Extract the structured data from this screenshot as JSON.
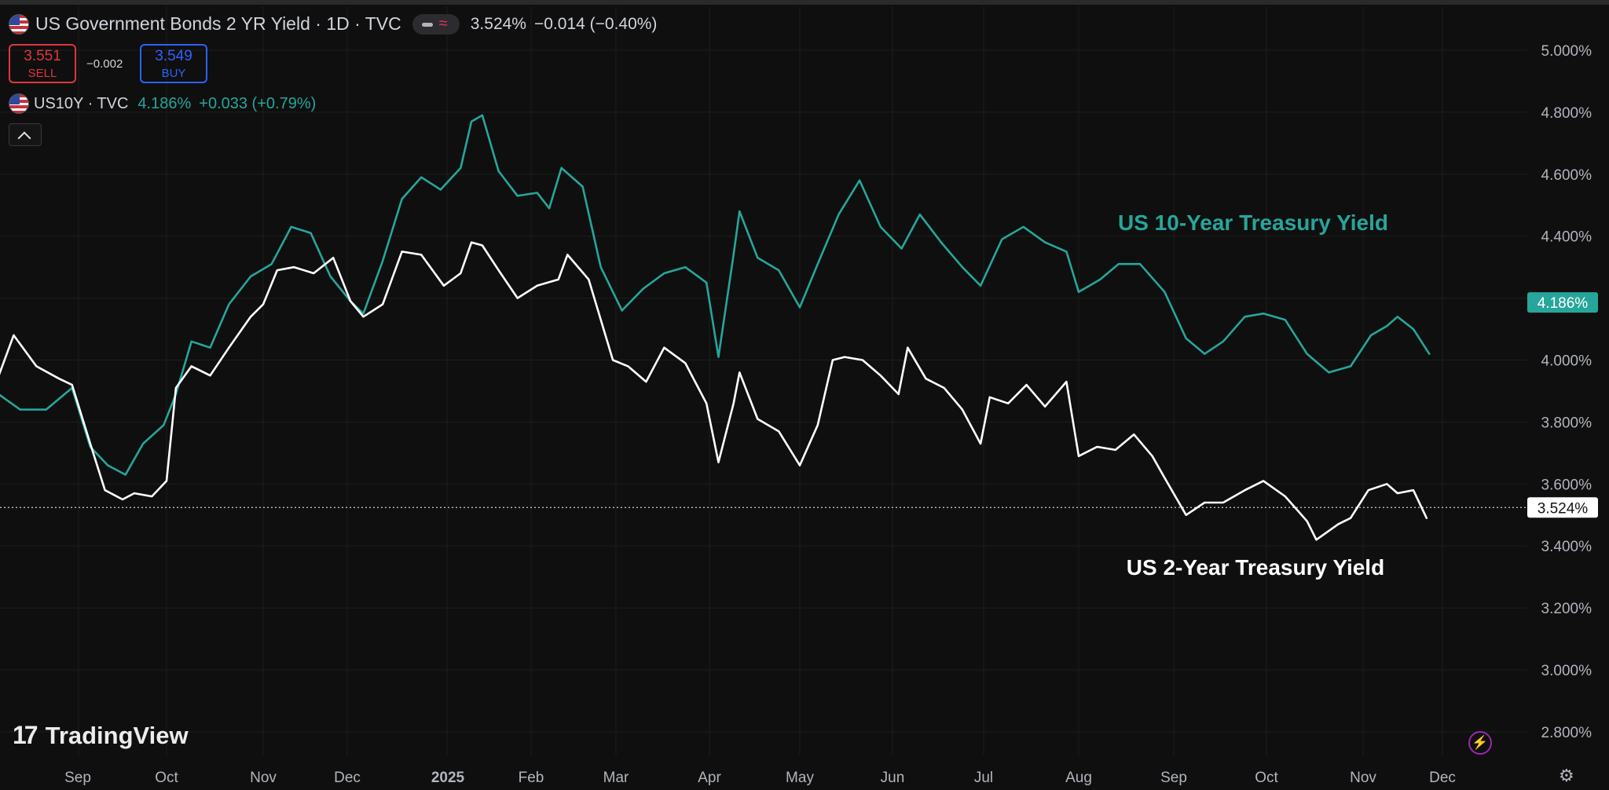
{
  "header": {
    "symbol_title": "US Government Bonds 2 YR Yield · 1D · TVC",
    "last": "3.524%",
    "change": "−0.014 (−0.40%)"
  },
  "trade": {
    "sell_price": "3.551",
    "sell_label": "SELL",
    "spread": "−0.002",
    "buy_price": "3.549",
    "buy_label": "BUY"
  },
  "compare": {
    "symbol": "US10Y · TVC",
    "value": "4.186%",
    "change": "+0.033 (+0.79%)"
  },
  "branding": {
    "name": "TradingView"
  },
  "colors": {
    "background": "#0f0f0f",
    "us10y_line": "#26a69a",
    "us2y_line": "#ffffff",
    "sell": "#e0353f",
    "buy": "#2d62ff"
  },
  "icons": [
    "us-flag-icon",
    "chart-style-icon",
    "collapse-chevron-icon",
    "tradingview-logo-icon",
    "lightning-icon",
    "gear-icon"
  ],
  "chart_data": {
    "type": "line",
    "x_axis_labels": [
      "Sep",
      "Oct",
      "Nov",
      "Dec",
      "2025",
      "Feb",
      "Mar",
      "Apr",
      "May",
      "Jun",
      "Jul",
      "Aug",
      "Sep",
      "Oct",
      "Nov",
      "Dec"
    ],
    "y_ticks": [
      "5.000%",
      "4.800%",
      "4.600%",
      "4.400%",
      "4.200%",
      "4.000%",
      "3.800%",
      "3.600%",
      "3.400%",
      "3.200%",
      "3.000%",
      "2.800%"
    ],
    "ylim": [
      2.76,
      5.04
    ],
    "grid": true,
    "annotations": [
      "US 10-Year Treasury Yield",
      "US 2-Year Treasury Yield"
    ],
    "last_value_labels": [
      "4.186%",
      "3.524%"
    ],
    "series": [
      {
        "name": "US10Y",
        "color": "#26a69a",
        "points": [
          [
            "2024-08-01",
            4.03
          ],
          [
            "2024-08-06",
            3.9
          ],
          [
            "2024-08-14",
            3.84
          ],
          [
            "2024-08-22",
            3.84
          ],
          [
            "2024-08-30",
            3.91
          ],
          [
            "2024-09-05",
            3.72
          ],
          [
            "2024-09-11",
            3.66
          ],
          [
            "2024-09-17",
            3.63
          ],
          [
            "2024-09-23",
            3.73
          ],
          [
            "2024-09-30",
            3.79
          ],
          [
            "2024-10-04",
            3.89
          ],
          [
            "2024-10-09",
            4.06
          ],
          [
            "2024-10-15",
            4.04
          ],
          [
            "2024-10-21",
            4.18
          ],
          [
            "2024-10-28",
            4.27
          ],
          [
            "2024-11-04",
            4.31
          ],
          [
            "2024-11-11",
            4.43
          ],
          [
            "2024-11-18",
            4.41
          ],
          [
            "2024-11-25",
            4.27
          ],
          [
            "2024-12-02",
            4.19
          ],
          [
            "2024-12-06",
            4.15
          ],
          [
            "2024-12-12",
            4.32
          ],
          [
            "2024-12-18",
            4.52
          ],
          [
            "2024-12-24",
            4.59
          ],
          [
            "2024-12-30",
            4.55
          ],
          [
            "2025-01-06",
            4.62
          ],
          [
            "2025-01-10",
            4.77
          ],
          [
            "2025-01-14",
            4.79
          ],
          [
            "2025-01-20",
            4.61
          ],
          [
            "2025-01-27",
            4.53
          ],
          [
            "2025-02-03",
            4.54
          ],
          [
            "2025-02-07",
            4.49
          ],
          [
            "2025-02-11",
            4.62
          ],
          [
            "2025-02-18",
            4.56
          ],
          [
            "2025-02-24",
            4.3
          ],
          [
            "2025-03-03",
            4.16
          ],
          [
            "2025-03-10",
            4.23
          ],
          [
            "2025-03-17",
            4.28
          ],
          [
            "2025-03-24",
            4.3
          ],
          [
            "2025-03-31",
            4.25
          ],
          [
            "2025-04-04",
            4.01
          ],
          [
            "2025-04-09",
            4.34
          ],
          [
            "2025-04-11",
            4.48
          ],
          [
            "2025-04-17",
            4.33
          ],
          [
            "2025-04-24",
            4.29
          ],
          [
            "2025-05-01",
            4.17
          ],
          [
            "2025-05-07",
            4.31
          ],
          [
            "2025-05-14",
            4.47
          ],
          [
            "2025-05-21",
            4.58
          ],
          [
            "2025-05-28",
            4.43
          ],
          [
            "2025-06-04",
            4.36
          ],
          [
            "2025-06-10",
            4.47
          ],
          [
            "2025-06-17",
            4.38
          ],
          [
            "2025-06-24",
            4.3
          ],
          [
            "2025-06-30",
            4.24
          ],
          [
            "2025-07-07",
            4.39
          ],
          [
            "2025-07-14",
            4.43
          ],
          [
            "2025-07-21",
            4.38
          ],
          [
            "2025-07-28",
            4.35
          ],
          [
            "2025-08-01",
            4.22
          ],
          [
            "2025-08-08",
            4.26
          ],
          [
            "2025-08-14",
            4.31
          ],
          [
            "2025-08-21",
            4.31
          ],
          [
            "2025-08-29",
            4.22
          ],
          [
            "2025-09-05",
            4.07
          ],
          [
            "2025-09-11",
            4.02
          ],
          [
            "2025-09-17",
            4.06
          ],
          [
            "2025-09-24",
            4.14
          ],
          [
            "2025-09-30",
            4.15
          ],
          [
            "2025-10-07",
            4.13
          ],
          [
            "2025-10-14",
            4.02
          ],
          [
            "2025-10-21",
            3.96
          ],
          [
            "2025-10-28",
            3.98
          ],
          [
            "2025-11-04",
            4.08
          ],
          [
            "2025-11-10",
            4.11
          ],
          [
            "2025-11-14",
            4.14
          ],
          [
            "2025-11-20",
            4.1
          ],
          [
            "2025-11-26",
            4.02
          ],
          [
            "2025-12-02",
            4.08
          ],
          [
            "2025-12-08",
            4.17
          ],
          [
            "2025-12-12",
            4.186
          ]
        ]
      },
      {
        "name": "US02Y",
        "color": "#ffffff",
        "points": [
          [
            "2024-08-01",
            4.05
          ],
          [
            "2024-08-06",
            3.91
          ],
          [
            "2024-08-12",
            4.08
          ],
          [
            "2024-08-19",
            3.98
          ],
          [
            "2024-08-26",
            3.94
          ],
          [
            "2024-08-30",
            3.92
          ],
          [
            "2024-09-05",
            3.73
          ],
          [
            "2024-09-10",
            3.58
          ],
          [
            "2024-09-16",
            3.55
          ],
          [
            "2024-09-20",
            3.57
          ],
          [
            "2024-09-26",
            3.56
          ],
          [
            "2024-10-01",
            3.61
          ],
          [
            "2024-10-04",
            3.91
          ],
          [
            "2024-10-09",
            3.98
          ],
          [
            "2024-10-15",
            3.95
          ],
          [
            "2024-10-21",
            4.04
          ],
          [
            "2024-10-28",
            4.14
          ],
          [
            "2024-11-01",
            4.18
          ],
          [
            "2024-11-06",
            4.29
          ],
          [
            "2024-11-12",
            4.3
          ],
          [
            "2024-11-19",
            4.28
          ],
          [
            "2024-11-26",
            4.33
          ],
          [
            "2024-12-02",
            4.19
          ],
          [
            "2024-12-06",
            4.14
          ],
          [
            "2024-12-12",
            4.18
          ],
          [
            "2024-12-18",
            4.35
          ],
          [
            "2024-12-24",
            4.34
          ],
          [
            "2024-12-31",
            4.24
          ],
          [
            "2025-01-06",
            4.28
          ],
          [
            "2025-01-10",
            4.38
          ],
          [
            "2025-01-14",
            4.37
          ],
          [
            "2025-01-20",
            4.29
          ],
          [
            "2025-01-27",
            4.2
          ],
          [
            "2025-02-03",
            4.24
          ],
          [
            "2025-02-10",
            4.26
          ],
          [
            "2025-02-13",
            4.34
          ],
          [
            "2025-02-20",
            4.26
          ],
          [
            "2025-02-28",
            4.0
          ],
          [
            "2025-03-05",
            3.98
          ],
          [
            "2025-03-11",
            3.93
          ],
          [
            "2025-03-17",
            4.04
          ],
          [
            "2025-03-24",
            3.99
          ],
          [
            "2025-03-31",
            3.86
          ],
          [
            "2025-04-04",
            3.67
          ],
          [
            "2025-04-09",
            3.86
          ],
          [
            "2025-04-11",
            3.96
          ],
          [
            "2025-04-17",
            3.81
          ],
          [
            "2025-04-24",
            3.77
          ],
          [
            "2025-05-01",
            3.66
          ],
          [
            "2025-05-07",
            3.79
          ],
          [
            "2025-05-12",
            4.0
          ],
          [
            "2025-05-16",
            4.01
          ],
          [
            "2025-05-22",
            4.0
          ],
          [
            "2025-05-28",
            3.95
          ],
          [
            "2025-06-03",
            3.89
          ],
          [
            "2025-06-06",
            4.04
          ],
          [
            "2025-06-12",
            3.94
          ],
          [
            "2025-06-18",
            3.91
          ],
          [
            "2025-06-24",
            3.84
          ],
          [
            "2025-06-30",
            3.73
          ],
          [
            "2025-07-03",
            3.88
          ],
          [
            "2025-07-09",
            3.86
          ],
          [
            "2025-07-15",
            3.92
          ],
          [
            "2025-07-21",
            3.85
          ],
          [
            "2025-07-28",
            3.93
          ],
          [
            "2025-08-01",
            3.69
          ],
          [
            "2025-08-07",
            3.72
          ],
          [
            "2025-08-13",
            3.71
          ],
          [
            "2025-08-19",
            3.76
          ],
          [
            "2025-08-25",
            3.69
          ],
          [
            "2025-08-29",
            3.62
          ],
          [
            "2025-09-05",
            3.5
          ],
          [
            "2025-09-11",
            3.54
          ],
          [
            "2025-09-17",
            3.54
          ],
          [
            "2025-09-24",
            3.58
          ],
          [
            "2025-09-30",
            3.61
          ],
          [
            "2025-10-07",
            3.56
          ],
          [
            "2025-10-14",
            3.48
          ],
          [
            "2025-10-17",
            3.42
          ],
          [
            "2025-10-24",
            3.47
          ],
          [
            "2025-10-28",
            3.49
          ],
          [
            "2025-11-03",
            3.58
          ],
          [
            "2025-11-10",
            3.6
          ],
          [
            "2025-11-14",
            3.57
          ],
          [
            "2025-11-20",
            3.58
          ],
          [
            "2025-11-25",
            3.49
          ],
          [
            "2025-12-02",
            3.51
          ],
          [
            "2025-12-08",
            3.6
          ],
          [
            "2025-12-10",
            3.62
          ],
          [
            "2025-12-12",
            3.524
          ]
        ]
      }
    ]
  }
}
